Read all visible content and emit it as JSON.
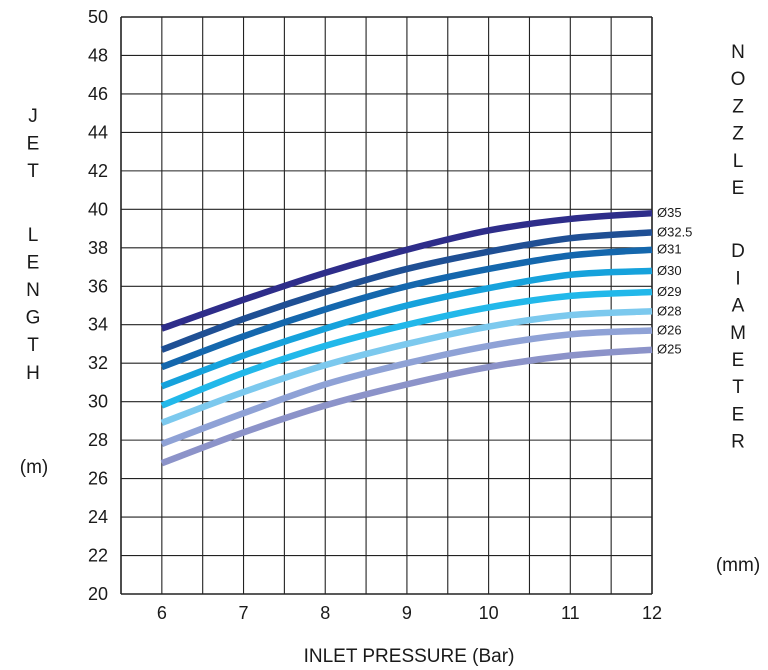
{
  "chart_data": {
    "type": "line",
    "xlabel": "INLET PRESSURE (Bar)",
    "ylabel": "JET LENGTH",
    "ylabel_unit": "(m)",
    "y2label": "NOZZLE DIAMETER",
    "y2label_unit": "(mm)",
    "xlim": [
      5.5,
      12
    ],
    "ylim": [
      20,
      50
    ],
    "x_ticks": [
      6,
      7,
      8,
      9,
      10,
      11,
      12
    ],
    "y_ticks": [
      20,
      22,
      24,
      26,
      28,
      30,
      32,
      34,
      36,
      38,
      40,
      42,
      44,
      46,
      48,
      50
    ],
    "grid": true,
    "x": [
      6,
      7,
      8,
      9,
      10,
      11,
      12
    ],
    "series": [
      {
        "name": "Ø35",
        "color": "#2e2d8a",
        "values": [
          33.8,
          35.3,
          36.7,
          37.9,
          38.9,
          39.5,
          39.8
        ]
      },
      {
        "name": "Ø32.5",
        "color": "#1f4f94",
        "values": [
          32.7,
          34.3,
          35.7,
          36.9,
          37.8,
          38.5,
          38.8
        ]
      },
      {
        "name": "Ø31",
        "color": "#1467ad",
        "values": [
          31.8,
          33.4,
          34.8,
          36.0,
          36.9,
          37.6,
          37.9
        ]
      },
      {
        "name": "Ø30",
        "color": "#16a2dc",
        "values": [
          30.8,
          32.4,
          33.8,
          35.0,
          35.9,
          36.6,
          36.8
        ]
      },
      {
        "name": "Ø29",
        "color": "#22b8ea",
        "values": [
          29.8,
          31.5,
          32.9,
          34.0,
          34.9,
          35.5,
          35.7
        ]
      },
      {
        "name": "Ø28",
        "color": "#7cc9ee",
        "values": [
          28.9,
          30.5,
          31.9,
          33.0,
          33.9,
          34.5,
          34.7
        ]
      },
      {
        "name": "Ø26",
        "color": "#8fa2d6",
        "values": [
          27.8,
          29.4,
          30.9,
          32.0,
          32.9,
          33.5,
          33.7
        ]
      },
      {
        "name": "Ø25",
        "color": "#8c93c9",
        "values": [
          26.8,
          28.4,
          29.8,
          30.9,
          31.8,
          32.4,
          32.7
        ]
      }
    ]
  }
}
